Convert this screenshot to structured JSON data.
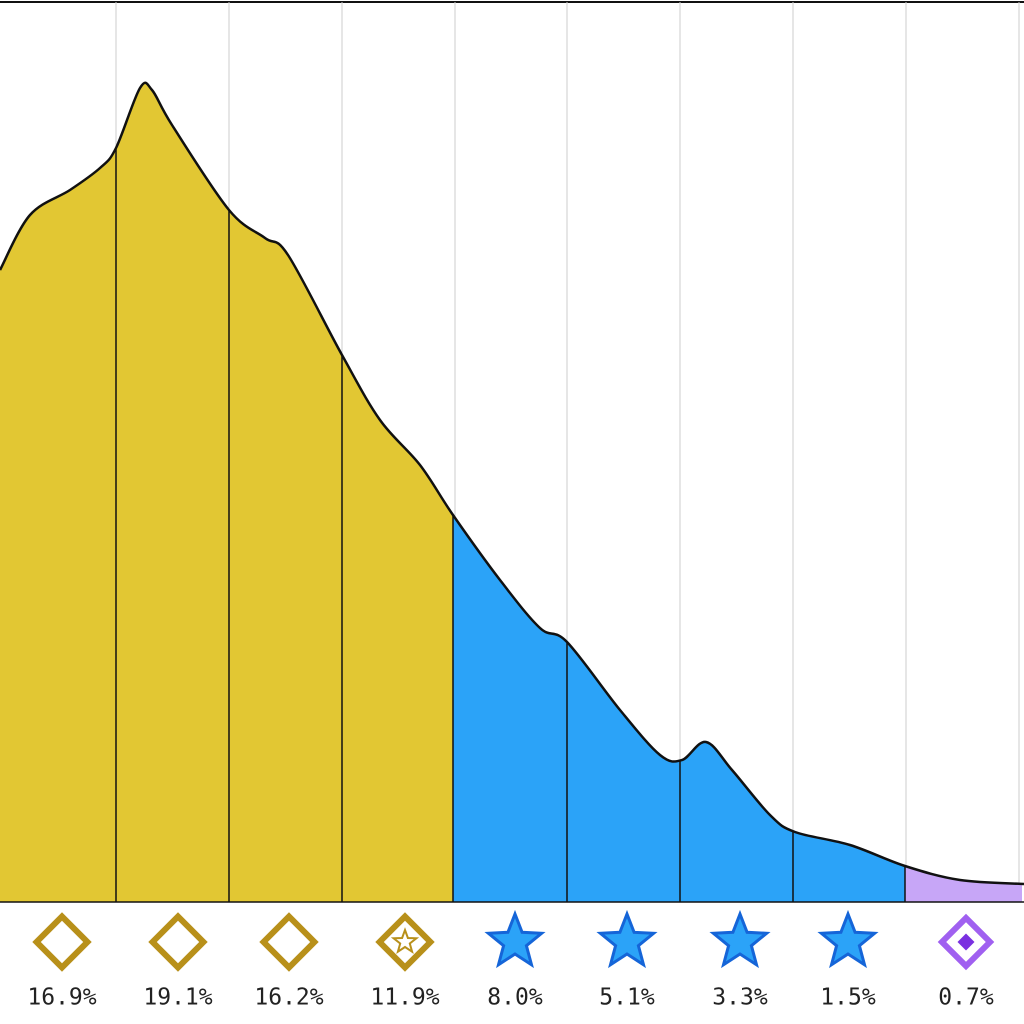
{
  "chart_data": {
    "type": "area",
    "values": [
      16.9,
      19.1,
      16.2,
      11.9,
      8.0,
      5.1,
      3.3,
      1.5,
      0.7
    ],
    "value_labels": [
      "16.9%",
      "19.1%",
      "16.2%",
      "11.9%",
      "8.0%",
      "5.1%",
      "3.3%",
      "1.5%",
      "0.7%"
    ],
    "colors": [
      "#e2c733",
      "#e2c733",
      "#e2c733",
      "#e2c733",
      "#2ba3f8",
      "#2ba3f8",
      "#2ba3f8",
      "#2ba3f8",
      "#c7a6f7"
    ],
    "grid": true
  }
}
